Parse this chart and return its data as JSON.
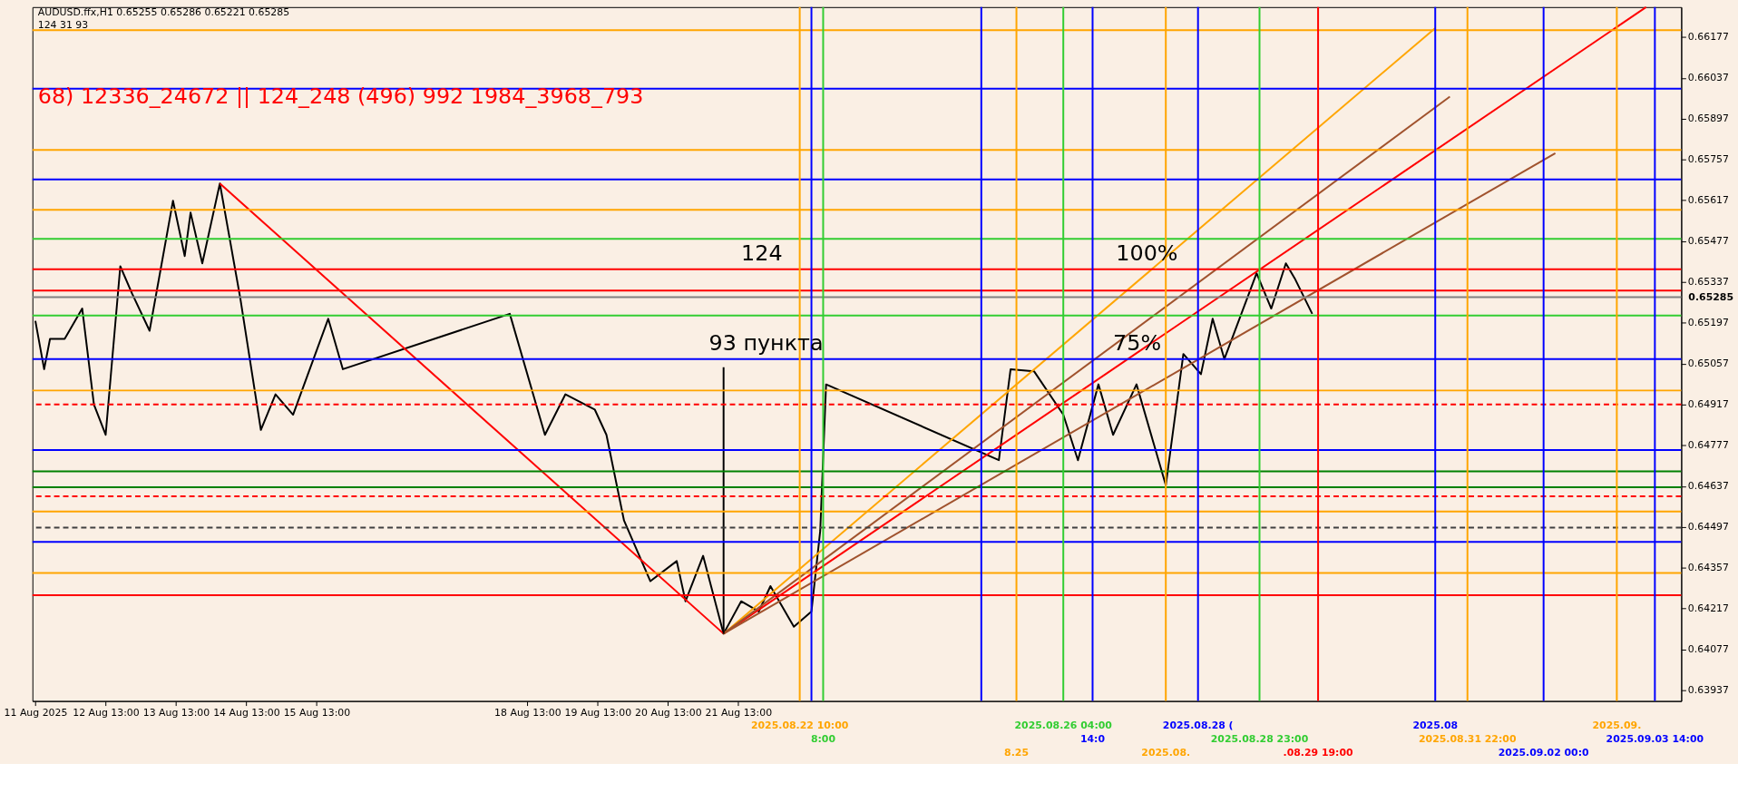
{
  "chart_data": {
    "type": "line",
    "title": "AUDUSD.ffx,H1  0.65255 0.65286 0.65221 0.65285",
    "subtitle": "68) 12336_24672 || 124_248 (496) 992 1984_3968_793",
    "annotations": [
      "124  31  93",
      {
        "text": "124",
        "x": "2025-08-21T14:00",
        "y": 0.65381
      },
      {
        "text": "100%",
        "x": "2025-08-26T22:00",
        "y": 0.65381
      },
      {
        "text": "93 пункта",
        "x": "2025-08-21T03:00",
        "y": 0.65073
      },
      {
        "text": "75%",
        "x": "2025-08-26T21:00",
        "y": 0.65073
      }
    ],
    "xlim": [
      "2025-08-11T12:00",
      "2025-09-03T23:00"
    ],
    "ylim": [
      0.639,
      0.6628
    ],
    "xticks": [
      {
        "value": "2025-08-11T13:00",
        "label": "11 Aug 2025"
      },
      {
        "value": "2025-08-12T13:00",
        "label": "12 Aug 13:00"
      },
      {
        "value": "2025-08-13T13:00",
        "label": "13 Aug 13:00"
      },
      {
        "value": "2025-08-14T13:00",
        "label": "14 Aug 13:00"
      },
      {
        "value": "2025-08-15T13:00",
        "label": "15 Aug 13:00"
      },
      {
        "value": "2025-08-18T13:00",
        "label": "18 Aug 13:00"
      },
      {
        "value": "2025-08-19T13:00",
        "label": "19 Aug 13:00"
      },
      {
        "value": "2025-08-20T13:00",
        "label": "20 Aug 13:00"
      },
      {
        "value": "2025-08-21T13:00",
        "label": "21 Aug 13:00"
      }
    ],
    "yticks": [
      0.66177,
      0.66037,
      0.65897,
      0.65757,
      0.65617,
      0.65477,
      0.65337,
      0.65197,
      0.65057,
      0.64917,
      0.64777,
      0.64637,
      0.64497,
      0.64357,
      0.64217,
      0.64077,
      0.63937
    ],
    "grid": false,
    "marker": "none",
    "line_style": "solid",
    "series": [
      {
        "color": "#000000",
        "x": [
          "2025-08-11T13:00",
          "2025-08-11T16:00",
          "2025-08-11T18:00",
          "2025-08-11T23:00",
          "2025-08-12T05:00",
          "2025-08-12T09:00",
          "2025-08-12T13:00",
          "2025-08-12T18:00",
          "2025-08-12T22:00",
          "2025-08-13T04:00",
          "2025-08-13T12:00",
          "2025-08-13T16:00",
          "2025-08-13T18:00",
          "2025-08-13T22:00",
          "2025-08-14T04:00",
          "2025-08-14T11:00",
          "2025-08-14T18:00",
          "2025-08-14T23:00",
          "2025-08-15T05:00",
          "2025-08-15T17:00",
          "2025-08-15T22:00",
          "2025-08-18T07:00",
          "2025-08-18T19:00",
          "2025-08-19T02:00",
          "2025-08-19T12:00",
          "2025-08-19T16:00",
          "2025-08-19T22:00",
          "2025-08-20T07:00",
          "2025-08-20T16:00",
          "2025-08-20T19:00",
          "2025-08-21T01:00",
          "2025-08-21T08:00",
          "2025-08-21T14:00",
          "2025-08-21T20:00",
          "2025-08-22T00:00",
          "2025-08-22T08:00",
          "2025-08-22T14:00",
          "2025-08-22T17:00",
          "2025-08-22T19:00",
          "2025-08-25T06:00",
          "2025-08-25T10:00",
          "2025-08-25T18:00",
          "2025-08-26T04:00",
          "2025-08-26T09:00",
          "2025-08-26T16:00",
          "2025-08-26T21:00",
          "2025-08-27T05:00",
          "2025-08-27T15:00",
          "2025-08-27T21:00",
          "2025-08-28T03:00",
          "2025-08-28T07:00",
          "2025-08-28T11:00",
          "2025-08-28T22:00",
          "2025-08-29T03:00",
          "2025-08-29T08:00",
          "2025-08-29T11:00",
          "2025-08-29T17:00"
        ],
        "values": [
          0.65204,
          0.65038,
          0.65142,
          0.65142,
          0.65246,
          0.64917,
          0.64813,
          0.65391,
          0.65298,
          0.6517,
          0.65616,
          0.65426,
          0.65575,
          0.65401,
          0.65675,
          0.6528,
          0.6483,
          0.64952,
          0.64882,
          0.65211,
          0.65038,
          0.65228,
          0.64813,
          0.64952,
          0.649,
          0.64813,
          0.64519,
          0.64311,
          0.6438,
          0.64242,
          0.64398,
          0.64131,
          0.64242,
          0.64207,
          0.64294,
          0.64155,
          0.64207,
          0.64484,
          0.64986,
          0.64726,
          0.65038,
          0.65031,
          0.64882,
          0.64726,
          0.64986,
          0.64813,
          0.64986,
          0.6464,
          0.6509,
          0.65021,
          0.65211,
          0.65073,
          0.65367,
          0.65246,
          0.65401,
          0.6535,
          0.65228
        ]
      },
      {
        "type": "line",
        "color": "#ff0000",
        "x": [
          "2025-08-14T04:00",
          "2025-08-21T08:00"
        ],
        "values": [
          0.65675,
          0.64131
        ]
      },
      {
        "type": "line",
        "color": "#ff0000",
        "x": [
          "2025-08-21T08:00",
          "2025-09-03T11:00"
        ],
        "values": [
          0.64131,
          0.6628
        ]
      },
      {
        "type": "line",
        "color": "#ffa500",
        "x": [
          "2025-08-21T08:00",
          "2025-08-31T11:00"
        ],
        "values": [
          0.64131,
          0.66208
        ]
      },
      {
        "type": "line",
        "color": "#a0522d",
        "x": [
          "2025-08-21T08:00",
          "2025-08-31T16:00"
        ],
        "values": [
          0.64131,
          0.65973
        ]
      },
      {
        "type": "line",
        "color": "#a0522d",
        "x": [
          "2025-08-21T08:00",
          "2025-09-02T04:00"
        ],
        "values": [
          0.64131,
          0.65779
        ]
      },
      {
        "type": "line",
        "color": "#000000",
        "x": [
          "2025-08-21T08:00",
          "2025-08-21T08:00"
        ],
        "values": [
          0.64131,
          0.65045
        ]
      }
    ],
    "ref_lines": [
      {
        "axis": "y",
        "value": 0.66201,
        "color": "#ffa500"
      },
      {
        "axis": "y",
        "value": 0.66,
        "color": "#0000ff"
      },
      {
        "axis": "y",
        "value": 0.6579,
        "color": "#ffa500"
      },
      {
        "axis": "y",
        "value": 0.65689,
        "color": "#0000ff"
      },
      {
        "axis": "y",
        "value": 0.65585,
        "color": "#ffa500"
      },
      {
        "axis": "y",
        "value": 0.65485,
        "color": "#32cd32"
      },
      {
        "axis": "y",
        "value": 0.65381,
        "color": "#ff0000"
      },
      {
        "axis": "y",
        "value": 0.65308,
        "color": "#ff0000"
      },
      {
        "axis": "y",
        "value": 0.65285,
        "color": "#808080",
        "label": "0.65285"
      },
      {
        "axis": "y",
        "value": 0.65222,
        "color": "#32cd32"
      },
      {
        "axis": "y",
        "value": 0.65073,
        "color": "#0000ff"
      },
      {
        "axis": "y",
        "value": 0.64965,
        "color": "#ffa500"
      },
      {
        "axis": "y",
        "value": 0.64917,
        "color": "#ff0000",
        "line_style": "dashed"
      },
      {
        "axis": "y",
        "value": 0.64761,
        "color": "#0000ff"
      },
      {
        "axis": "y",
        "value": 0.64688,
        "color": "#008000"
      },
      {
        "axis": "y",
        "value": 0.64633,
        "color": "#008000"
      },
      {
        "axis": "y",
        "value": 0.64602,
        "color": "#ff0000",
        "line_style": "dashed"
      },
      {
        "axis": "y",
        "value": 0.6455,
        "color": "#ffa500"
      },
      {
        "axis": "y",
        "value": 0.64495,
        "color": "#404040",
        "line_style": "dashed"
      },
      {
        "axis": "y",
        "value": 0.64446,
        "color": "#0000ff"
      },
      {
        "axis": "y",
        "value": 0.64339,
        "color": "#ffa500"
      },
      {
        "axis": "y",
        "value": 0.64263,
        "color": "#ff0000"
      },
      {
        "axis": "x",
        "value": "2025-08-22T10:00",
        "color": "#ffa500",
        "label": "2025.08.22 10:00"
      },
      {
        "axis": "x",
        "value": "2025-08-22T14:00",
        "color": "#0000ff"
      },
      {
        "axis": "x",
        "value": "2025-08-22T18:00",
        "color": "#32cd32",
        "label": "8:00"
      },
      {
        "axis": "x",
        "value": "2025-08-25T00:00",
        "color": "#0000ff"
      },
      {
        "axis": "x",
        "value": "2025-08-25T12:00",
        "color": "#ffa500",
        "label": "8.25"
      },
      {
        "axis": "x",
        "value": "2025-08-26T04:00",
        "color": "#32cd32",
        "label": "2025.08.26 04:00"
      },
      {
        "axis": "x",
        "value": "2025-08-26T14:00",
        "color": "#0000ff",
        "label": "14:0"
      },
      {
        "axis": "x",
        "value": "2025-08-27T15:00",
        "color": "#ffa500",
        "label": "2025.08."
      },
      {
        "axis": "x",
        "value": "2025-08-28T02:00",
        "color": "#0000ff",
        "label": "2025.08.28 ("
      },
      {
        "axis": "x",
        "value": "2025-08-28T23:00",
        "color": "#32cd32",
        "label": "2025.08.28 23:00"
      },
      {
        "axis": "x",
        "value": "2025-08-29T19:00",
        "color": "#ff0000",
        "label": ".08.29 19:00"
      },
      {
        "axis": "x",
        "value": "2025-08-31T11:00",
        "color": "#0000ff",
        "label": "2025.08"
      },
      {
        "axis": "x",
        "value": "2025-08-31T22:00",
        "color": "#ffa500",
        "label": "2025.08.31 22:00"
      },
      {
        "axis": "x",
        "value": "2025-09-02T00:00",
        "color": "#0000ff",
        "label": "2025.09.02 00:0"
      },
      {
        "axis": "x",
        "value": "2025-09-03T01:00",
        "color": "#ffa500",
        "label": "2025.09."
      },
      {
        "axis": "x",
        "value": "2025-09-03T14:00",
        "color": "#0000ff",
        "label": "2025.09.03 14:00"
      }
    ]
  }
}
